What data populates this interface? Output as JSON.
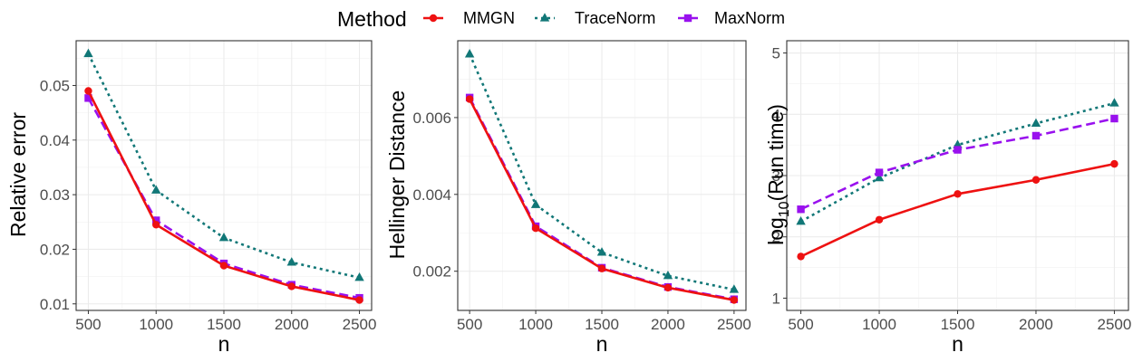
{
  "legend": {
    "title": "Method",
    "items": [
      {
        "label": "MMGN",
        "color": "#ee1111",
        "marker": "circle",
        "dash": "solid"
      },
      {
        "label": "TraceNorm",
        "color": "#117777",
        "marker": "triangle",
        "dash": "dotted"
      },
      {
        "label": "MaxNorm",
        "color": "#9911ee",
        "marker": "square",
        "dash": "dashed"
      }
    ]
  },
  "chart_data": [
    {
      "type": "line",
      "title": "",
      "xlabel": "n",
      "ylabel": "Relative error",
      "x": [
        500,
        1000,
        1500,
        2000,
        2500
      ],
      "xlim": [
        410,
        2590
      ],
      "ylim": [
        0.0088,
        0.0582
      ],
      "yticks": [
        0.01,
        0.02,
        0.03,
        0.04,
        0.05
      ],
      "ytick_labels": [
        "0.01",
        "0.02",
        "0.03",
        "0.04",
        "0.05"
      ],
      "xticks": [
        500,
        1000,
        1500,
        2000,
        2500
      ],
      "xtick_labels": [
        "500",
        "1000",
        "1500",
        "2000",
        "2500"
      ],
      "grid": true,
      "series": [
        {
          "name": "MMGN",
          "values": [
            0.049,
            0.0245,
            0.017,
            0.0132,
            0.0107
          ]
        },
        {
          "name": "TraceNorm",
          "values": [
            0.0558,
            0.0308,
            0.0221,
            0.0176,
            0.0148
          ]
        },
        {
          "name": "MaxNorm",
          "values": [
            0.0477,
            0.0253,
            0.0174,
            0.0135,
            0.0111
          ]
        }
      ]
    },
    {
      "type": "line",
      "title": "",
      "xlabel": "n",
      "ylabel": "Hellinger Distance",
      "x": [
        500,
        1000,
        1500,
        2000,
        2500
      ],
      "xlim": [
        410,
        2590
      ],
      "ylim": [
        0.00098,
        0.008
      ],
      "yticks": [
        0.002,
        0.004,
        0.006
      ],
      "ytick_labels": [
        "0.002",
        "0.004",
        "0.006"
      ],
      "xticks": [
        500,
        1000,
        1500,
        2000,
        2500
      ],
      "xtick_labels": [
        "500",
        "1000",
        "1500",
        "2000",
        "2500"
      ],
      "grid": true,
      "series": [
        {
          "name": "MMGN",
          "values": [
            0.00648,
            0.00312,
            0.00207,
            0.00157,
            0.00125
          ]
        },
        {
          "name": "TraceNorm",
          "values": [
            0.00765,
            0.00373,
            0.00249,
            0.00188,
            0.00152
          ]
        },
        {
          "name": "MaxNorm",
          "values": [
            0.00652,
            0.00317,
            0.00209,
            0.00159,
            0.00127
          ]
        }
      ]
    },
    {
      "type": "line",
      "title": "",
      "xlabel": "n",
      "ylabel": "log",
      "ylabel_sub": "10",
      "ylabel_suffix": "(Run time)",
      "x": [
        500,
        1000,
        1500,
        2000,
        2500
      ],
      "xlim": [
        410,
        2590
      ],
      "ylim": [
        0.8,
        5.2
      ],
      "yticks": [
        1,
        2,
        3,
        4,
        5
      ],
      "ytick_labels": [
        "1",
        "2",
        "3",
        "4",
        "5"
      ],
      "xticks": [
        500,
        1000,
        1500,
        2000,
        2500
      ],
      "xtick_labels": [
        "500",
        "1000",
        "1500",
        "2000",
        "2500"
      ],
      "grid": true,
      "series": [
        {
          "name": "MMGN",
          "values": [
            1.68,
            2.28,
            2.7,
            2.93,
            3.19
          ]
        },
        {
          "name": "TraceNorm",
          "values": [
            2.25,
            2.96,
            3.5,
            3.85,
            4.18
          ]
        },
        {
          "name": "MaxNorm",
          "values": [
            2.45,
            3.05,
            3.42,
            3.65,
            3.93
          ]
        }
      ]
    }
  ]
}
